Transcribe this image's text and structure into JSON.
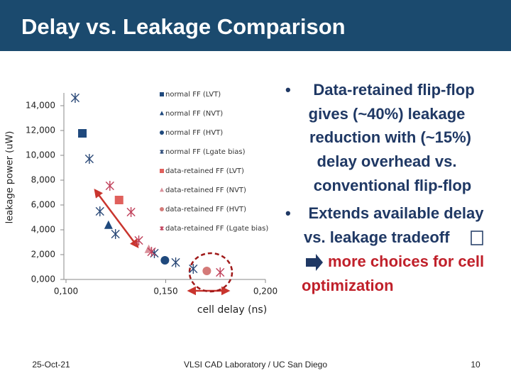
{
  "header": {
    "title": "Delay vs. Leakage Comparison"
  },
  "chart_data": {
    "type": "scatter",
    "x_label": "cell delay (ns)",
    "y_label": "leakage power (uW)",
    "xlim": [
      0.1,
      0.2
    ],
    "xticks": [
      {
        "value": 0.1,
        "label": "0,100"
      },
      {
        "value": 0.15,
        "label": "0,150"
      },
      {
        "value": 0.2,
        "label": "0,200"
      }
    ],
    "ylim": [
      0,
      15000
    ],
    "yticks": [
      {
        "value": 0,
        "label": "0,000"
      },
      {
        "value": 2000,
        "label": "2,000"
      },
      {
        "value": 4000,
        "label": "4,000"
      },
      {
        "value": 6000,
        "label": "6,000"
      },
      {
        "value": 8000,
        "label": "8,000"
      },
      {
        "value": 10000,
        "label": "10,000"
      },
      {
        "value": 12000,
        "label": "12,000"
      },
      {
        "value": 14000,
        "label": "14,000"
      }
    ],
    "legend": "right",
    "series": [
      {
        "name": "normal FF (LVT)",
        "color": "#1f497d",
        "marker": "square",
        "x": [
          0.1082
        ],
        "values": [
          11771
        ]
      },
      {
        "name": "normal FF (NVT)",
        "color": "#1f497d",
        "marker": "triangle",
        "x": [
          0.1213
        ],
        "values": [
          4343
        ]
      },
      {
        "name": "normal FF (HVT)",
        "color": "#1f497d",
        "marker": "circle",
        "x": [
          0.1496
        ],
        "values": [
          1543
        ]
      },
      {
        "name": "normal FF (Lgate bias)",
        "color": "#2c4a78",
        "marker": "asterisk",
        "x": [
          0.1046,
          0.1117,
          0.117,
          0.1248,
          0.1443,
          0.155,
          0.1638
        ],
        "values": [
          14629,
          9714,
          5486,
          3657,
          2114,
          1371,
          857
        ]
      },
      {
        "name": "data-retained FF (LVT)",
        "color": "#e0605c",
        "marker": "square",
        "x": [
          0.1266
        ],
        "values": [
          6400
        ]
      },
      {
        "name": "data-retained FF (NVT)",
        "color": "#d9909a",
        "marker": "triangle",
        "x": [
          0.1415
        ],
        "values": [
          2400
        ]
      },
      {
        "name": "data-retained FF (HVT)",
        "color": "#d47a78",
        "marker": "circle",
        "x": [
          0.1706
        ],
        "values": [
          686
        ]
      },
      {
        "name": "data-retained FF (Lgate bias)",
        "color": "#c0405a",
        "marker": "asterisk",
        "x": [
          0.122,
          0.1326,
          0.1365,
          0.1429,
          0.1773
        ],
        "values": [
          7543,
          5429,
          3143,
          2229,
          571
        ]
      }
    ]
  },
  "bullets": [
    {
      "lines": [
        "Data-retained flip-flop",
        "gives (~40%) leakage",
        "reduction with (~15%)",
        "delay overhead vs.",
        "conventional flip-flop"
      ]
    },
    {
      "lines": [
        "Extends available delay",
        "vs. leakage tradeoff"
      ],
      "highlight": [
        "more choices for cell",
        "optimization"
      ]
    }
  ],
  "footer": {
    "date": "25-Oct-21",
    "center": "VLSI CAD Laboratory / UC San Diego",
    "page": "10"
  }
}
